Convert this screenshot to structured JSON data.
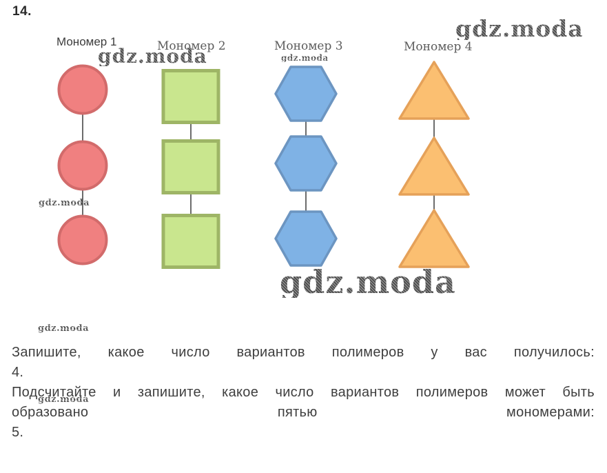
{
  "page": {
    "number": "14."
  },
  "watermark": {
    "text": "gdz.moda"
  },
  "diagram": {
    "columns": [
      {
        "label": "Мономер 1",
        "shape": "circle",
        "count": 3,
        "fill": "#F08080",
        "stroke": "#D26B6B"
      },
      {
        "label": "Мономер 2",
        "shape": "square",
        "count": 3,
        "fill": "#C9E68E",
        "stroke": "#9EB566"
      },
      {
        "label": "Мономер 3",
        "shape": "hexagon",
        "count": 3,
        "fill": "#7FB2E5",
        "stroke": "#6C95C1"
      },
      {
        "label": "Мономер 4",
        "shape": "triangle",
        "count": 3,
        "fill": "#FBBF71",
        "stroke": "#E5A159"
      }
    ],
    "connector_color": "#2e2e2e"
  },
  "questions": [
    {
      "prompt_lines": [
        [
          "Запишите,",
          "какое",
          "число",
          "вариантов",
          "полимеров",
          "у",
          "вас",
          "получилось:"
        ]
      ],
      "answer": "4."
    },
    {
      "prompt_lines": [
        [
          "Подсчитайте",
          "и",
          "запишите,",
          "какое",
          "число",
          "вариантов",
          "полимеров",
          "может",
          "быть"
        ],
        [
          "образовано",
          "пятью",
          "мономерами:"
        ]
      ],
      "answer": "5."
    }
  ]
}
